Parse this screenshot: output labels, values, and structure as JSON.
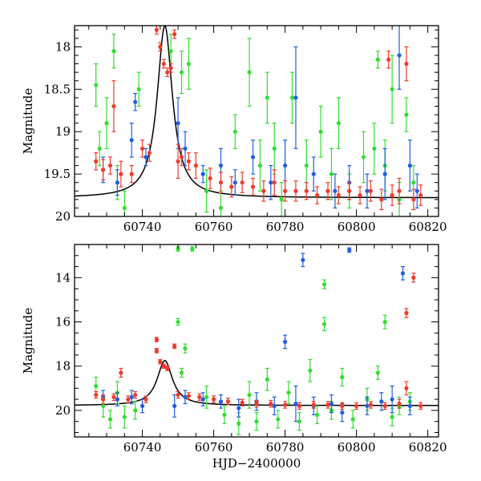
{
  "chart_data": [
    {
      "type": "scatter",
      "title": "",
      "xlabel": "",
      "ylabel": "Magnitude",
      "xlim": [
        60721,
        60823
      ],
      "ylim": [
        20.0,
        17.75
      ],
      "y_inverted": true,
      "xticks": [
        60740,
        60760,
        60780,
        60800,
        60820
      ],
      "yticks": [
        18,
        18.5,
        19,
        19.5,
        20
      ],
      "ytick_labels": [
        "18",
        "18.5",
        "19",
        "19.5",
        "20"
      ],
      "model_curve": {
        "color": "#000000",
        "baseline_mag": 19.78,
        "peak_x": 60746.3,
        "peak_mag": 17.75,
        "width_days": 2.6
      },
      "series_colors": {
        "green": "#33dd33",
        "blue": "#1f5fe0",
        "red": "#f03a2a"
      },
      "note_points": "Dense clouds of photometry with error bars; representative points listed per series.",
      "series": [
        {
          "color": "green",
          "points": [
            [
              60727,
              18.45,
              0.25
            ],
            [
              60728,
              19.2,
              0.2
            ],
            [
              60730,
              18.9,
              0.3
            ],
            [
              60732,
              18.05,
              0.2
            ],
            [
              60733,
              19.6,
              0.2
            ],
            [
              60735,
              19.9,
              0.2
            ],
            [
              60739,
              18.5,
              0.2
            ],
            [
              60748,
              18.05,
              0.2
            ],
            [
              60751,
              18.3,
              0.25
            ],
            [
              60753,
              18.2,
              0.3
            ],
            [
              60758,
              19.7,
              0.25
            ],
            [
              60762,
              19.9,
              0.2
            ],
            [
              60766,
              19.0,
              0.2
            ],
            [
              60770,
              18.3,
              0.4
            ],
            [
              60773,
              19.4,
              0.3
            ],
            [
              60775,
              18.6,
              0.3
            ],
            [
              60777,
              19.2,
              0.3
            ],
            [
              60779,
              19.8,
              0.2
            ],
            [
              60782,
              18.6,
              0.3
            ],
            [
              60786,
              19.4,
              0.3
            ],
            [
              60790,
              19.0,
              0.3
            ],
            [
              60793,
              19.5,
              0.3
            ],
            [
              60795,
              18.9,
              0.3
            ],
            [
              60798,
              19.7,
              0.2
            ],
            [
              60802,
              19.3,
              0.3
            ],
            [
              60805,
              19.2,
              0.3
            ],
            [
              60806,
              18.15,
              0.1
            ],
            [
              60808,
              19.4,
              0.3
            ],
            [
              60810,
              18.5,
              0.4
            ],
            [
              60812,
              19.8,
              0.2
            ],
            [
              60814,
              18.8,
              0.2
            ],
            [
              60816,
              19.6,
              0.2
            ]
          ]
        },
        {
          "color": "blue",
          "points": [
            [
              60729,
              19.45,
              0.15
            ],
            [
              60733,
              19.6,
              0.15
            ],
            [
              60737,
              19.1,
              0.2
            ],
            [
              60738,
              18.65,
              0.1
            ],
            [
              60741,
              19.3,
              0.1
            ],
            [
              60750,
              18.9,
              0.3
            ],
            [
              60752,
              19.2,
              0.2
            ],
            [
              60757,
              19.5,
              0.1
            ],
            [
              60762,
              19.4,
              0.2
            ],
            [
              60766,
              19.6,
              0.15
            ],
            [
              60771,
              19.3,
              0.2
            ],
            [
              60776,
              19.6,
              0.2
            ],
            [
              60780,
              19.4,
              0.3
            ],
            [
              60783,
              18.6,
              0.6
            ],
            [
              60788,
              19.5,
              0.2
            ],
            [
              60794,
              19.7,
              0.2
            ],
            [
              60798,
              19.6,
              0.2
            ],
            [
              60803,
              19.7,
              0.2
            ],
            [
              60808,
              19.5,
              0.3
            ],
            [
              60812,
              18.1,
              0.4
            ],
            [
              60815,
              19.4,
              0.3
            ],
            [
              60817,
              19.7,
              0.2
            ]
          ]
        },
        {
          "color": "red",
          "points": [
            [
              60727,
              19.35,
              0.1
            ],
            [
              60729,
              19.45,
              0.12
            ],
            [
              60731,
              19.4,
              0.1
            ],
            [
              60732,
              18.7,
              0.3
            ],
            [
              60734,
              19.5,
              0.15
            ],
            [
              60737,
              19.5,
              0.1
            ],
            [
              60740,
              19.2,
              0.1
            ],
            [
              60742,
              19.25,
              0.1
            ],
            [
              60744,
              17.8,
              0.05
            ],
            [
              60745,
              18.0,
              0.05
            ],
            [
              60746,
              18.2,
              0.05
            ],
            [
              60747,
              18.3,
              0.05
            ],
            [
              60748,
              18.25,
              0.05
            ],
            [
              60749,
              17.85,
              0.05
            ],
            [
              60750,
              19.35,
              0.2
            ],
            [
              60751,
              19.3,
              0.1
            ],
            [
              60753,
              19.35,
              0.1
            ],
            [
              60755,
              19.4,
              0.15
            ],
            [
              60759,
              19.55,
              0.12
            ],
            [
              60762,
              19.6,
              0.12
            ],
            [
              60765,
              19.65,
              0.12
            ],
            [
              60768,
              19.6,
              0.12
            ],
            [
              60771,
              19.65,
              0.1
            ],
            [
              60774,
              19.7,
              0.12
            ],
            [
              60777,
              19.6,
              0.15
            ],
            [
              60780,
              19.7,
              0.12
            ],
            [
              60783,
              19.7,
              0.12
            ],
            [
              60786,
              19.7,
              0.1
            ],
            [
              60789,
              19.75,
              0.1
            ],
            [
              60792,
              19.7,
              0.1
            ],
            [
              60795,
              19.75,
              0.1
            ],
            [
              60798,
              19.7,
              0.1
            ],
            [
              60801,
              19.75,
              0.1
            ],
            [
              60804,
              19.7,
              0.12
            ],
            [
              60807,
              19.8,
              0.12
            ],
            [
              60809,
              18.15,
              0.1
            ],
            [
              60810,
              19.75,
              0.12
            ],
            [
              60812,
              19.7,
              0.15
            ],
            [
              60814,
              18.2,
              0.2
            ],
            [
              60816,
              19.8,
              0.12
            ],
            [
              60818,
              19.75,
              0.12
            ]
          ]
        }
      ]
    },
    {
      "type": "scatter",
      "title": "",
      "xlabel": "HJD−2400000",
      "ylabel": "Magnitude",
      "xlim": [
        60721,
        60823
      ],
      "ylim": [
        21.2,
        12.5
      ],
      "y_inverted": true,
      "xticks": [
        60740,
        60760,
        60780,
        60800,
        60820
      ],
      "yticks": [
        14,
        16,
        18,
        20
      ],
      "ytick_labels": [
        "14",
        "16",
        "18",
        "20"
      ],
      "model_curve": {
        "color": "#000000",
        "baseline_mag": 19.78,
        "peak_x": 60746.3,
        "peak_mag": 17.75,
        "width_days": 2.6
      },
      "series_colors": {
        "green": "#33dd33",
        "blue": "#1f5fe0",
        "red": "#f03a2a"
      },
      "series": [
        {
          "color": "green",
          "points": [
            [
              60727,
              18.9,
              0.4
            ],
            [
              60729,
              19.8,
              0.5
            ],
            [
              60731,
              20.4,
              0.4
            ],
            [
              60733,
              19.2,
              0.5
            ],
            [
              60735,
              20.3,
              0.5
            ],
            [
              60738,
              20.0,
              0.4
            ],
            [
              60750,
              12.7,
              0.1
            ],
            [
              60750,
              16.0,
              0.15
            ],
            [
              60751,
              18.3,
              0.2
            ],
            [
              60752,
              17.2,
              0.2
            ],
            [
              60754,
              12.7,
              0.1
            ],
            [
              60758,
              19.4,
              0.5
            ],
            [
              60763,
              20.2,
              0.4
            ],
            [
              60767,
              20.6,
              0.5
            ],
            [
              60770,
              19.3,
              0.6
            ],
            [
              60772,
              20.5,
              0.4
            ],
            [
              60775,
              18.6,
              0.5
            ],
            [
              60778,
              20.4,
              0.4
            ],
            [
              60781,
              19.2,
              0.5
            ],
            [
              60784,
              20.5,
              0.4
            ],
            [
              60787,
              18.2,
              0.5
            ],
            [
              60789,
              20.2,
              0.4
            ],
            [
              60791,
              14.3,
              0.2
            ],
            [
              60791,
              16.1,
              0.3
            ],
            [
              60793,
              20.0,
              0.4
            ],
            [
              60796,
              18.5,
              0.4
            ],
            [
              60799,
              20.4,
              0.4
            ],
            [
              60803,
              19.5,
              0.5
            ],
            [
              60806,
              18.3,
              0.3
            ],
            [
              60808,
              16.0,
              0.3
            ],
            [
              60810,
              20.3,
              0.4
            ],
            [
              60812,
              19.8,
              0.4
            ],
            [
              60815,
              19.6,
              0.4
            ]
          ]
        },
        {
          "color": "blue",
          "points": [
            [
              60729,
              19.4,
              0.3
            ],
            [
              60733,
              19.5,
              0.3
            ],
            [
              60737,
              19.4,
              0.3
            ],
            [
              60740,
              19.8,
              0.3
            ],
            [
              60749,
              19.8,
              0.5
            ],
            [
              60752,
              19.4,
              0.3
            ],
            [
              60757,
              19.5,
              0.3
            ],
            [
              60762,
              19.6,
              0.3
            ],
            [
              60767,
              19.9,
              0.4
            ],
            [
              60772,
              19.6,
              0.4
            ],
            [
              60777,
              19.8,
              0.4
            ],
            [
              60780,
              16.9,
              0.3
            ],
            [
              60783,
              19.7,
              0.8
            ],
            [
              60785,
              13.2,
              0.3
            ],
            [
              60788,
              19.8,
              0.4
            ],
            [
              60793,
              19.7,
              0.4
            ],
            [
              60796,
              20.1,
              0.4
            ],
            [
              60798,
              12.75,
              0.1
            ],
            [
              60803,
              19.8,
              0.4
            ],
            [
              60807,
              19.6,
              0.4
            ],
            [
              60810,
              19.5,
              0.6
            ],
            [
              60813,
              13.8,
              0.3
            ],
            [
              60815,
              19.8,
              0.4
            ]
          ]
        },
        {
          "color": "red",
          "points": [
            [
              60727,
              19.3,
              0.15
            ],
            [
              60729,
              19.5,
              0.2
            ],
            [
              60732,
              19.4,
              0.15
            ],
            [
              60734,
              18.3,
              0.2
            ],
            [
              60736,
              19.5,
              0.15
            ],
            [
              60738,
              19.3,
              0.15
            ],
            [
              60741,
              19.5,
              0.15
            ],
            [
              60744,
              16.8,
              0.1
            ],
            [
              60744,
              17.3,
              0.1
            ],
            [
              60745,
              17.8,
              0.1
            ],
            [
              60746,
              18.0,
              0.1
            ],
            [
              60747,
              18.1,
              0.1
            ],
            [
              60749,
              17.1,
              0.1
            ],
            [
              60750,
              19.3,
              0.15
            ],
            [
              60753,
              19.35,
              0.15
            ],
            [
              60756,
              19.4,
              0.15
            ],
            [
              60760,
              19.5,
              0.15
            ],
            [
              60764,
              19.6,
              0.15
            ],
            [
              60768,
              19.65,
              0.15
            ],
            [
              60772,
              19.7,
              0.15
            ],
            [
              60776,
              19.7,
              0.15
            ],
            [
              60780,
              19.75,
              0.15
            ],
            [
              60784,
              19.8,
              0.15
            ],
            [
              60788,
              19.75,
              0.15
            ],
            [
              60792,
              19.75,
              0.15
            ],
            [
              60796,
              19.8,
              0.15
            ],
            [
              60800,
              19.8,
              0.15
            ],
            [
              60804,
              19.75,
              0.15
            ],
            [
              60808,
              19.8,
              0.15
            ],
            [
              60812,
              19.7,
              0.2
            ],
            [
              60814,
              15.6,
              0.2
            ],
            [
              60814,
              19.0,
              0.3
            ],
            [
              60816,
              14.0,
              0.2
            ],
            [
              60818,
              19.8,
              0.15
            ]
          ]
        }
      ]
    }
  ]
}
